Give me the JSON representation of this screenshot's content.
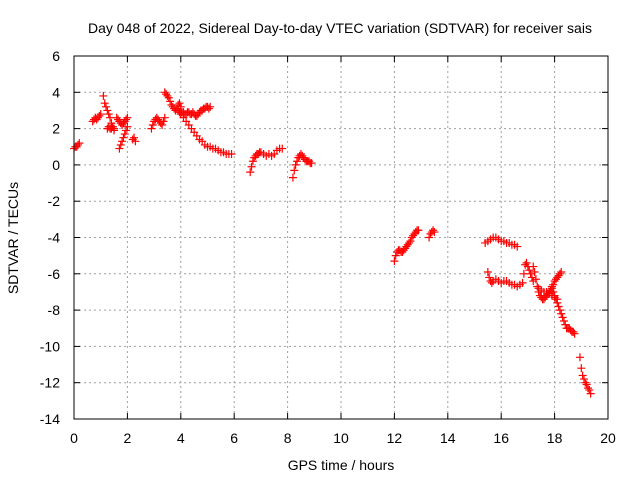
{
  "chart_data": {
    "type": "scatter",
    "title": "Day 048 of 2022, Sidereal Day-to-day VTEC variation (SDTVAR) for receiver sais",
    "xlabel": "GPS time / hours",
    "ylabel": "SDTVAR / TECUs",
    "xlim": [
      0,
      20
    ],
    "ylim": [
      -14,
      6
    ],
    "xticks": [
      0,
      2,
      4,
      6,
      8,
      10,
      12,
      14,
      16,
      18,
      20
    ],
    "yticks": [
      -14,
      -12,
      -10,
      -8,
      -6,
      -4,
      -2,
      0,
      2,
      4,
      6
    ],
    "xtick_labels": [
      "0",
      "2",
      "4",
      "6",
      "8",
      "10",
      "12",
      "14",
      "16",
      "18",
      "20"
    ],
    "ytick_labels": [
      "-14",
      "-12",
      "-10",
      "-8",
      "-6",
      "-4",
      "-2",
      "0",
      "2",
      "4",
      "6"
    ],
    "grid": true,
    "marker": "+",
    "color": "#ff0000",
    "segments": [
      {
        "x": [
          0.0,
          0.05,
          0.1,
          0.15,
          0.2
        ],
        "y": [
          0.9,
          1.0,
          1.0,
          1.1,
          1.2
        ]
      },
      {
        "x": [
          0.7,
          0.75,
          0.8,
          0.85,
          0.9,
          0.95,
          1.0
        ],
        "y": [
          2.4,
          2.5,
          2.6,
          2.5,
          2.6,
          2.7,
          2.8
        ]
      },
      {
        "x": [
          1.1,
          1.15,
          1.2,
          1.25,
          1.3,
          1.35,
          1.4,
          1.45,
          1.5
        ],
        "y": [
          3.8,
          3.4,
          3.2,
          3.0,
          2.8,
          2.6,
          2.3,
          2.1,
          2.0
        ]
      },
      {
        "x": [
          1.25,
          1.3,
          1.35,
          1.4,
          1.45,
          1.5
        ],
        "y": [
          2.0,
          2.1,
          2.0,
          2.0,
          2.1,
          1.9
        ]
      },
      {
        "x": [
          1.6,
          1.65,
          1.7,
          1.75,
          1.8,
          1.85,
          1.9,
          1.95,
          2.0
        ],
        "y": [
          2.6,
          2.5,
          2.4,
          2.3,
          2.2,
          2.3,
          2.4,
          2.5,
          2.6
        ]
      },
      {
        "x": [
          1.7,
          1.75,
          1.8,
          1.85,
          1.9,
          1.95,
          2.0
        ],
        "y": [
          0.9,
          1.1,
          1.3,
          1.5,
          1.7,
          1.9,
          2.1
        ]
      },
      {
        "x": [
          2.2,
          2.25,
          2.3
        ],
        "y": [
          1.4,
          1.5,
          1.3
        ]
      },
      {
        "x": [
          2.9,
          2.95,
          3.0,
          3.05,
          3.1,
          3.15,
          3.2,
          3.25,
          3.3,
          3.35,
          3.4
        ],
        "y": [
          2.0,
          2.2,
          2.4,
          2.5,
          2.6,
          2.5,
          2.4,
          2.3,
          2.2,
          2.4,
          2.6
        ]
      },
      {
        "x": [
          3.4,
          3.45,
          3.5,
          3.55,
          3.6,
          3.65,
          3.7,
          3.75,
          3.8,
          3.85,
          3.9,
          3.95,
          4.0
        ],
        "y": [
          4.0,
          3.9,
          3.8,
          3.7,
          3.5,
          3.3,
          3.2,
          3.1,
          3.0,
          3.1,
          3.3,
          3.4,
          3.2
        ]
      },
      {
        "x": [
          3.9,
          3.95,
          4.0,
          4.05,
          4.1,
          4.15,
          4.2,
          4.25,
          4.3,
          4.35,
          4.4,
          4.45,
          4.5,
          4.55,
          4.6,
          4.65,
          4.7,
          4.75,
          4.8,
          4.85,
          4.9,
          4.95,
          5.0,
          5.05,
          5.1
        ],
        "y": [
          3.0,
          2.9,
          2.8,
          2.9,
          2.9,
          2.8,
          2.8,
          2.9,
          2.9,
          2.8,
          2.8,
          2.9,
          2.8,
          2.7,
          2.7,
          2.8,
          2.9,
          3.0,
          3.0,
          3.1,
          3.1,
          3.2,
          3.2,
          3.1,
          3.2
        ]
      },
      {
        "x": [
          4.0,
          4.1,
          4.2,
          4.3,
          4.4,
          4.5,
          4.6,
          4.7,
          4.8,
          4.9,
          5.0,
          5.1,
          5.2,
          5.3,
          5.4,
          5.5,
          5.6,
          5.7,
          5.8,
          5.9
        ],
        "y": [
          2.8,
          2.6,
          2.4,
          2.2,
          2.0,
          1.8,
          1.6,
          1.4,
          1.3,
          1.1,
          1.0,
          1.0,
          0.9,
          0.9,
          0.8,
          0.7,
          0.7,
          0.6,
          0.6,
          0.6
        ]
      },
      {
        "x": [
          6.6,
          6.65,
          6.7,
          6.75,
          6.8,
          6.85,
          6.9,
          6.95,
          7.0,
          7.1,
          7.2,
          7.3,
          7.4,
          7.5,
          7.6,
          7.7,
          7.8
        ],
        "y": [
          -0.4,
          -0.1,
          0.2,
          0.4,
          0.5,
          0.6,
          0.6,
          0.7,
          0.7,
          0.6,
          0.5,
          0.6,
          0.5,
          0.6,
          0.8,
          0.9,
          0.9
        ]
      },
      {
        "x": [
          8.2,
          8.25,
          8.3,
          8.35,
          8.4,
          8.45,
          8.5,
          8.55,
          8.6,
          8.65,
          8.7,
          8.75,
          8.8,
          8.85,
          8.9
        ],
        "y": [
          -0.7,
          -0.3,
          0.0,
          0.2,
          0.4,
          0.5,
          0.6,
          0.5,
          0.4,
          0.3,
          0.2,
          0.2,
          0.2,
          0.1,
          0.1
        ]
      },
      {
        "x": [
          12.0,
          12.05,
          12.1,
          12.15,
          12.2,
          12.25,
          12.3,
          12.35,
          12.4,
          12.45,
          12.5,
          12.55,
          12.6,
          12.65,
          12.7,
          12.75,
          12.8,
          12.85,
          12.9
        ],
        "y": [
          -5.3,
          -5.0,
          -4.8,
          -4.7,
          -4.7,
          -4.8,
          -4.8,
          -4.7,
          -4.6,
          -4.5,
          -4.4,
          -4.3,
          -4.2,
          -4.0,
          -3.9,
          -3.8,
          -3.7,
          -3.6,
          -3.6
        ]
      },
      {
        "x": [
          13.3,
          13.35,
          13.4,
          13.45,
          13.5
        ],
        "y": [
          -4.0,
          -3.8,
          -3.7,
          -3.6,
          -3.7
        ]
      },
      {
        "x": [
          15.4,
          15.5,
          15.6,
          15.7,
          15.8,
          15.9,
          16.0,
          16.1,
          16.2,
          16.3,
          16.4,
          16.5,
          16.6
        ],
        "y": [
          -4.3,
          -4.2,
          -4.1,
          -4.0,
          -4.0,
          -4.1,
          -4.2,
          -4.2,
          -4.3,
          -4.3,
          -4.4,
          -4.4,
          -4.5
        ]
      },
      {
        "x": [
          15.5,
          15.55,
          15.6,
          15.65,
          15.7,
          15.8,
          15.9,
          16.0,
          16.1,
          16.2,
          16.3,
          16.4,
          16.5,
          16.6,
          16.7
        ],
        "y": [
          -5.9,
          -6.2,
          -6.4,
          -6.5,
          -6.4,
          -6.3,
          -6.4,
          -6.5,
          -6.4,
          -6.4,
          -6.5,
          -6.6,
          -6.6,
          -6.7,
          -6.6
        ]
      },
      {
        "x": [
          16.8,
          16.85,
          16.9,
          16.95,
          17.0,
          17.05,
          17.1,
          17.15,
          17.2
        ],
        "y": [
          -6.5,
          -6.0,
          -5.5,
          -5.4,
          -5.6,
          -5.8,
          -6.0,
          -6.2,
          -6.4
        ]
      },
      {
        "x": [
          17.2,
          17.25,
          17.3,
          17.35,
          17.4,
          17.45,
          17.5,
          17.55,
          17.6,
          17.65,
          17.7,
          17.75,
          17.8,
          17.85,
          17.9,
          17.95,
          18.0,
          18.05,
          18.1,
          18.15,
          18.2,
          18.25
        ],
        "y": [
          -5.6,
          -5.9,
          -6.3,
          -6.7,
          -7.0,
          -7.2,
          -7.3,
          -7.4,
          -7.4,
          -7.3,
          -7.2,
          -7.1,
          -7.0,
          -6.9,
          -6.8,
          -6.6,
          -6.4,
          -6.3,
          -6.2,
          -6.1,
          -6.0,
          -5.9
        ]
      },
      {
        "x": [
          17.4,
          17.5,
          17.6,
          17.7,
          17.8,
          17.9,
          18.0,
          18.1
        ],
        "y": [
          -6.8,
          -6.9,
          -7.0,
          -7.0,
          -7.1,
          -7.2,
          -7.3,
          -7.4
        ]
      },
      {
        "x": [
          17.9,
          17.95,
          18.0,
          18.05,
          18.1,
          18.15,
          18.2,
          18.25,
          18.3,
          18.35,
          18.4,
          18.45,
          18.5,
          18.55,
          18.6,
          18.65,
          18.7,
          18.75
        ],
        "y": [
          -6.7,
          -7.0,
          -7.2,
          -7.4,
          -7.6,
          -7.8,
          -8.0,
          -8.2,
          -8.4,
          -8.6,
          -8.8,
          -9.0,
          -9.0,
          -9.0,
          -9.1,
          -9.2,
          -9.2,
          -9.3
        ]
      },
      {
        "x": [
          18.95,
          19.0,
          19.05,
          19.1,
          19.15,
          19.2,
          19.25,
          19.3,
          19.35
        ],
        "y": [
          -10.6,
          -11.2,
          -11.6,
          -11.8,
          -12.0,
          -12.1,
          -12.3,
          -12.4,
          -12.6
        ]
      }
    ]
  }
}
